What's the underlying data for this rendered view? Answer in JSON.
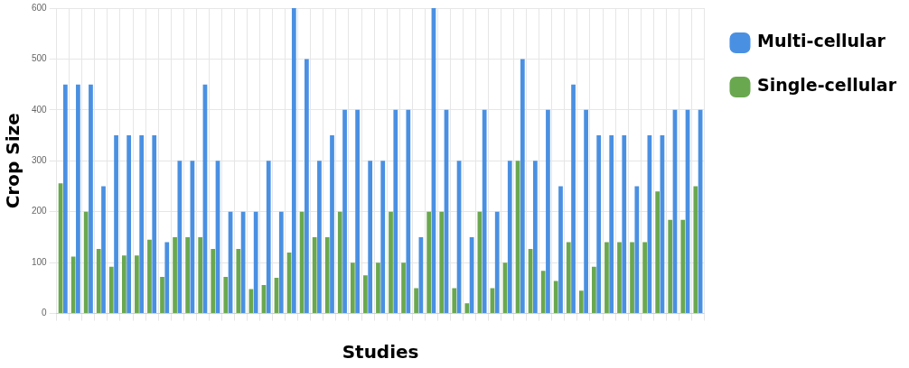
{
  "chart_data": {
    "type": "bar",
    "xlabel": "Studies",
    "ylabel": "Crop Size",
    "categories": [
      null,
      null,
      null,
      null,
      null,
      null,
      null,
      null,
      null,
      null,
      null,
      null,
      null,
      null,
      null,
      null,
      null,
      null,
      null,
      null,
      null,
      null,
      null,
      null,
      null,
      null,
      null,
      null,
      null,
      null,
      null,
      null,
      null,
      null,
      null,
      null,
      null,
      null,
      null,
      null,
      null,
      null,
      null,
      null,
      null,
      null,
      null,
      null,
      null,
      null,
      null
    ],
    "series": [
      {
        "name": "Single-cellular",
        "color": "#6aa84f",
        "values": [
          256,
          112,
          200,
          127,
          92,
          114,
          114,
          145,
          72,
          150,
          150,
          150,
          127,
          72,
          127,
          48,
          56,
          70,
          120,
          200,
          150,
          150,
          200,
          100,
          75,
          100,
          200,
          100,
          50,
          200,
          200,
          50,
          20,
          200,
          50,
          100,
          300,
          127,
          84,
          64,
          140,
          45,
          92,
          140,
          140,
          140,
          140,
          240,
          184,
          184,
          250
        ]
      },
      {
        "name": "Multi-cellular",
        "color": "#4a90e2",
        "values": [
          450,
          450,
          450,
          250,
          350,
          350,
          350,
          350,
          140,
          300,
          300,
          450,
          300,
          200,
          200,
          200,
          300,
          200,
          600,
          500,
          300,
          350,
          400,
          400,
          300,
          300,
          400,
          400,
          150,
          600,
          400,
          300,
          150,
          400,
          200,
          300,
          500,
          300,
          400,
          250,
          450,
          400,
          350,
          350,
          350,
          250,
          350,
          350,
          400,
          400,
          400
        ]
      }
    ],
    "ylim": [
      0,
      600
    ],
    "yticks": [
      0,
      100,
      200,
      300,
      400,
      500,
      600
    ],
    "grid": true,
    "legend": "right"
  }
}
